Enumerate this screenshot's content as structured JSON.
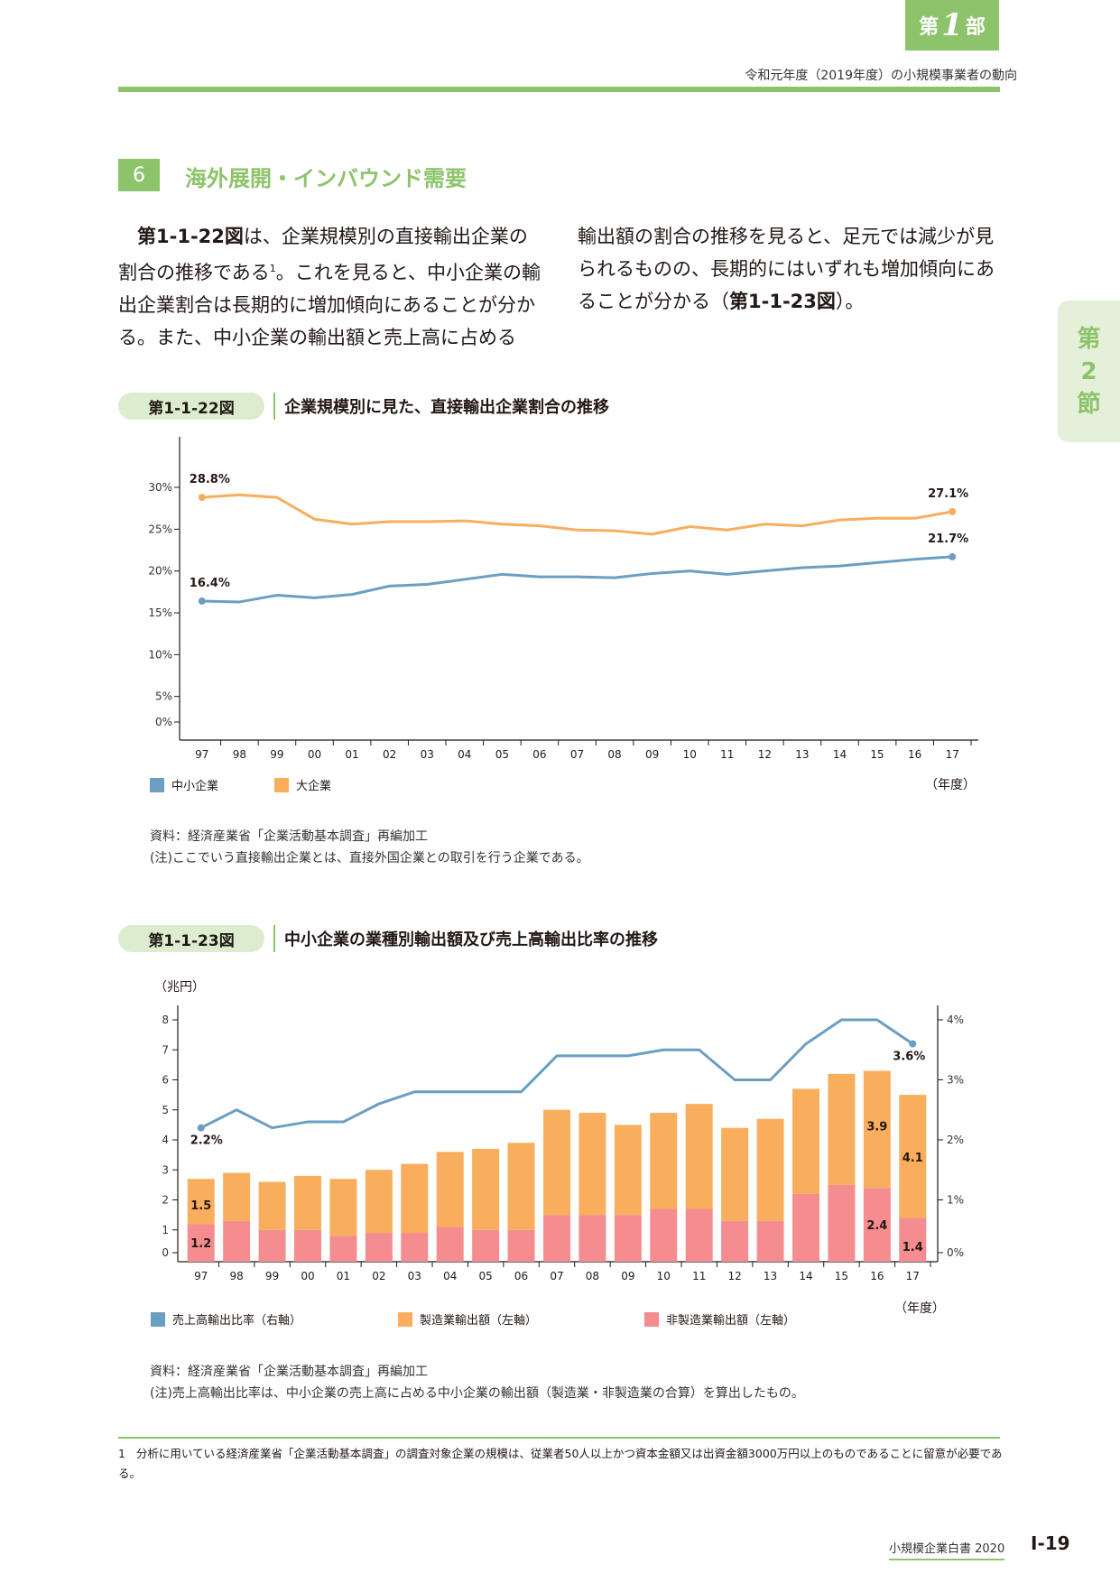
{
  "header": {
    "part_prefix": "第",
    "part_number": "1",
    "part_suffix": "部",
    "title": "令和元年度（2019年度）の小規模事業者の動向"
  },
  "side_tab": {
    "line1": "第",
    "line2": "2",
    "line3": "節"
  },
  "section": {
    "number": "6",
    "title": "海外展開・インバウンド需要"
  },
  "paragraphs": {
    "left_ref": "第1-1-22図",
    "left_text": "は、企業規模別の直接輸出企業の割合の推移である",
    "left_sup": "1",
    "left_text2": "。これを見ると、中小企業の輸出企業割合は長期的に増加傾向にあることが分かる。また、中小企業の輸出額と売上高に占める",
    "right_text": "輸出額の割合の推移を見ると、足元では減少が見られるものの、長期的にはいずれも増加傾向にあることが分かる（",
    "right_ref": "第1-1-23図",
    "right_end": "）。"
  },
  "figure1": {
    "label": "第1-1-22図",
    "title": "企業規模別に見た、直接輸出企業割合の推移",
    "source": "資料：経済産業省「企業活動基本調査」再編加工",
    "note": "(注)ここでいう直接輸出企業とは、直接外国企業との取引を行う企業である。"
  },
  "figure2": {
    "label": "第1-1-23図",
    "title": "中小企業の業種別輸出額及び売上高輸出比率の推移",
    "source": "資料：経済産業省「企業活動基本調査」再編加工",
    "note": "(注)売上高輸出比率は、中小企業の売上高に占める中小企業の輸出額（製造業・非製造業の合算）を算出したもの。"
  },
  "colors": {
    "accent": "#8dc46b",
    "sme": "#6a9fc2",
    "large": "#f8ae5c",
    "mfg": "#f8ae5c",
    "nonmfg": "#f58c8f"
  },
  "chart_data": [
    {
      "type": "line",
      "x": [
        "97",
        "98",
        "99",
        "00",
        "01",
        "02",
        "03",
        "04",
        "05",
        "06",
        "07",
        "08",
        "09",
        "10",
        "11",
        "12",
        "13",
        "14",
        "15",
        "16",
        "17"
      ],
      "x_unit_label": "（年度）",
      "yticks": [
        "0%",
        "5%",
        "10%",
        "15%",
        "20%",
        "25%",
        "30%"
      ],
      "ylim": [
        0,
        30
      ],
      "series": [
        {
          "name": "中小企業",
          "color": "#6a9fc2",
          "values": [
            16.4,
            16.3,
            17.1,
            16.8,
            17.2,
            18.2,
            18.4,
            19.0,
            19.6,
            19.3,
            19.3,
            19.2,
            19.7,
            20.0,
            19.6,
            20.0,
            20.4,
            20.6,
            21.0,
            21.4,
            21.7
          ]
        },
        {
          "name": "大企業",
          "color": "#f8ae5c",
          "values": [
            28.8,
            29.1,
            28.8,
            26.2,
            25.6,
            25.9,
            25.9,
            26.0,
            25.6,
            25.4,
            24.9,
            24.8,
            24.4,
            25.3,
            24.9,
            25.6,
            25.4,
            26.1,
            26.3,
            26.3,
            27.1
          ]
        }
      ],
      "data_labels": [
        {
          "series": "大企業",
          "x": "97",
          "text": "28.8%"
        },
        {
          "series": "大企業",
          "x": "17",
          "text": "27.1%"
        },
        {
          "series": "中小企業",
          "x": "97",
          "text": "16.4%"
        },
        {
          "series": "中小企業",
          "x": "17",
          "text": "21.7%"
        }
      ],
      "legend": [
        "中小企業",
        "大企業"
      ]
    },
    {
      "type": "bar",
      "stacked": true,
      "categories": [
        "97",
        "98",
        "99",
        "00",
        "01",
        "02",
        "03",
        "04",
        "05",
        "06",
        "07",
        "08",
        "09",
        "10",
        "11",
        "12",
        "13",
        "14",
        "15",
        "16",
        "17"
      ],
      "x_unit_label": "（年度）",
      "y_left_unit": "（兆円）",
      "y_left_ticks": [
        "0",
        "1",
        "2",
        "3",
        "4",
        "5",
        "6",
        "7",
        "8"
      ],
      "y_left_lim": [
        0,
        8
      ],
      "y_right_ticks": [
        "0%",
        "1%",
        "2%",
        "3%",
        "4%"
      ],
      "y_right_lim": [
        0,
        4
      ],
      "series": [
        {
          "name": "非製造業輸出額（左軸）",
          "color": "#f58c8f",
          "axis": "left",
          "values": [
            1.2,
            1.3,
            1.0,
            1.0,
            0.8,
            0.9,
            0.9,
            1.1,
            1.0,
            1.0,
            1.5,
            1.5,
            1.5,
            1.7,
            1.7,
            1.3,
            1.3,
            2.2,
            2.5,
            2.4,
            1.4
          ]
        },
        {
          "name": "製造業輸出額（左軸）",
          "color": "#f8ae5c",
          "axis": "left",
          "values": [
            1.5,
            1.6,
            1.6,
            1.8,
            1.9,
            2.1,
            2.3,
            2.5,
            2.7,
            2.9,
            3.5,
            3.4,
            3.0,
            3.2,
            3.5,
            3.1,
            3.4,
            3.5,
            3.7,
            3.9,
            4.1
          ]
        },
        {
          "name": "売上高輸出比率（右軸）",
          "color": "#6a9fc2",
          "axis": "right",
          "type": "line",
          "values": [
            2.2,
            2.5,
            2.2,
            2.3,
            2.3,
            2.6,
            2.8,
            2.8,
            2.8,
            2.8,
            3.4,
            3.4,
            3.4,
            3.5,
            3.5,
            3.0,
            3.0,
            3.6,
            4.0,
            4.0,
            3.6
          ]
        }
      ],
      "data_labels": [
        {
          "series": "非製造業輸出額（左軸）",
          "x": "97",
          "text": "1.2"
        },
        {
          "series": "製造業輸出額（左軸）",
          "x": "97",
          "text": "1.5"
        },
        {
          "series": "非製造業輸出額（左軸）",
          "x": "16",
          "text": "2.4"
        },
        {
          "series": "製造業輸出額（左軸）",
          "x": "16",
          "text": "3.9"
        },
        {
          "series": "非製造業輸出額（左軸）",
          "x": "17",
          "text": "1.4"
        },
        {
          "series": "製造業輸出額（左軸）",
          "x": "17",
          "text": "4.1"
        },
        {
          "series": "売上高輸出比率（右軸）",
          "x": "97",
          "text": "2.2%"
        },
        {
          "series": "売上高輸出比率（右軸）",
          "x": "17",
          "text": "3.6%"
        }
      ],
      "legend": [
        "売上高輸出比率（右軸）",
        "製造業輸出額（左軸）",
        "非製造業輸出額（左軸）"
      ]
    }
  ],
  "footnote": {
    "number": "1",
    "text": "分析に用いている経済産業省「企業活動基本調査」の調査対象企業の規模は、従業者50人以上かつ資本金額又は出資金額3000万円以上のものであることに留意が必要である。"
  },
  "footer": {
    "book": "小規模企業白書 2020",
    "page": "Ⅰ-19"
  }
}
